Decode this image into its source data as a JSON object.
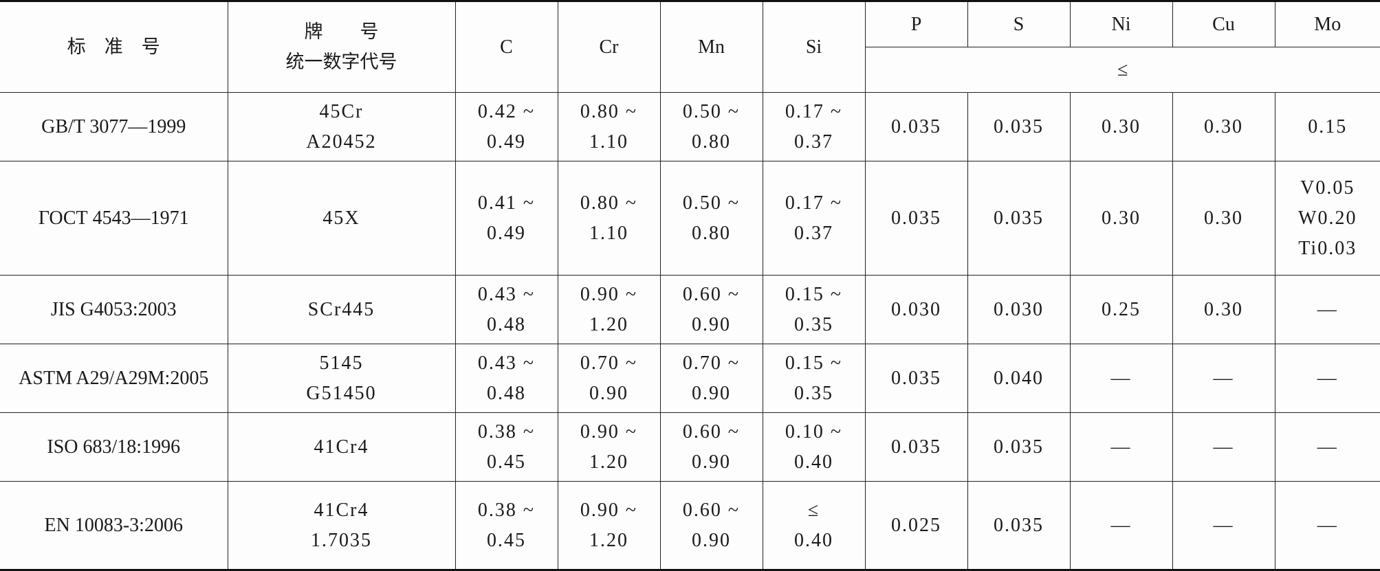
{
  "header": {
    "standard": "标　准　号",
    "grade_line1": "牌　　号",
    "grade_line2": "统一数字代号",
    "elements": [
      "C",
      "Cr",
      "Mn",
      "Si",
      "P",
      "S",
      "Ni",
      "Cu",
      "Mo"
    ],
    "max_symbol": "≤"
  },
  "rows": [
    {
      "standard": "GB/T 3077—1999",
      "grade": [
        "45Cr",
        "A20452"
      ],
      "C": [
        "0.42 ~",
        "0.49"
      ],
      "Cr": [
        "0.80 ~",
        "1.10"
      ],
      "Mn": [
        "0.50 ~",
        "0.80"
      ],
      "Si": [
        "0.17 ~",
        "0.37"
      ],
      "P": "0.035",
      "S": "0.035",
      "Ni": "0.30",
      "Cu": "0.30",
      "Mo": [
        "0.15"
      ]
    },
    {
      "standard": "ГОСТ 4543—1971",
      "grade": [
        "45X"
      ],
      "C": [
        "0.41 ~",
        "0.49"
      ],
      "Cr": [
        "0.80 ~",
        "1.10"
      ],
      "Mn": [
        "0.50 ~",
        "0.80"
      ],
      "Si": [
        "0.17 ~",
        "0.37"
      ],
      "P": "0.035",
      "S": "0.035",
      "Ni": "0.30",
      "Cu": "0.30",
      "Mo": [
        "V0.05",
        "W0.20",
        "Ti0.03"
      ]
    },
    {
      "standard": "JIS G4053:2003",
      "grade": [
        "SCr445"
      ],
      "C": [
        "0.43 ~",
        "0.48"
      ],
      "Cr": [
        "0.90 ~",
        "1.20"
      ],
      "Mn": [
        "0.60 ~",
        "0.90"
      ],
      "Si": [
        "0.15 ~",
        "0.35"
      ],
      "P": "0.030",
      "S": "0.030",
      "Ni": "0.25",
      "Cu": "0.30",
      "Mo": [
        "—"
      ]
    },
    {
      "standard": "ASTM A29/A29M:2005",
      "grade": [
        "5145",
        "G51450"
      ],
      "C": [
        "0.43 ~",
        "0.48"
      ],
      "Cr": [
        "0.70 ~",
        "0.90"
      ],
      "Mn": [
        "0.70 ~",
        "0.90"
      ],
      "Si": [
        "0.15 ~",
        "0.35"
      ],
      "P": "0.035",
      "S": "0.040",
      "Ni": "—",
      "Cu": "—",
      "Mo": [
        "—"
      ]
    },
    {
      "standard": "ISO 683/18:1996",
      "grade": [
        "41Cr4"
      ],
      "C": [
        "0.38 ~",
        "0.45"
      ],
      "Cr": [
        "0.90 ~",
        "1.20"
      ],
      "Mn": [
        "0.60 ~",
        "0.90"
      ],
      "Si": [
        "0.10 ~",
        "0.40"
      ],
      "P": "0.035",
      "S": "0.035",
      "Ni": "—",
      "Cu": "—",
      "Mo": [
        "—"
      ]
    },
    {
      "standard": "EN 10083-3:2006",
      "grade": [
        "41Cr4",
        "1.7035"
      ],
      "C": [
        "0.38 ~",
        "0.45"
      ],
      "Cr": [
        "0.90 ~",
        "1.20"
      ],
      "Mn": [
        "0.60 ~",
        "0.90"
      ],
      "Si": [
        "≤",
        "0.40"
      ],
      "P": "0.025",
      "S": "0.035",
      "Ni": "—",
      "Cu": "—",
      "Mo": [
        "—"
      ]
    }
  ]
}
